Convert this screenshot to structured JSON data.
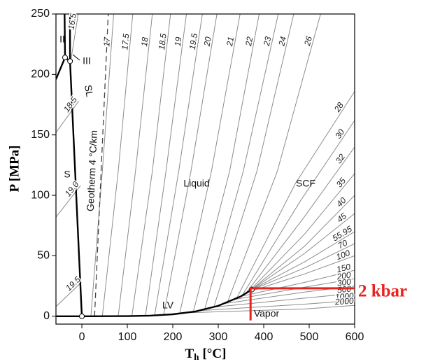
{
  "chart_data": {
    "type": "phase-diagram",
    "xlabel_symbol": "T",
    "xlabel_sub": "h",
    "xlabel_unit": "[°C]",
    "ylabel": "P [MPa]",
    "xlim": [
      -57,
      600
    ],
    "ylim": [
      -6.5,
      250
    ],
    "xticks": [
      0,
      100,
      200,
      300,
      400,
      500,
      600
    ],
    "yticks": [
      0,
      50,
      100,
      150,
      200,
      250
    ],
    "isochore_color": "#8c8c8c",
    "boundary_color": "#000000",
    "boundaries": [
      {
        "x": [
          -57,
          0
        ],
        "values": [
          0,
          0
        ]
      },
      {
        "x": [
          0,
          100,
          150,
          200,
          250,
          300,
          350,
          373.9
        ],
        "values": [
          0,
          0.1,
          0.5,
          1.6,
          4,
          8.6,
          16.5,
          22.1
        ]
      },
      {
        "x": [
          0,
          -26
        ],
        "values": [
          0,
          211
        ]
      },
      {
        "x": [
          -26,
          -37
        ],
        "values": [
          211,
          214
        ]
      },
      {
        "x": [
          -37,
          -57
        ],
        "values": [
          214,
          196
        ]
      },
      {
        "x": [
          -37,
          -38
        ],
        "values": [
          214,
          250
        ]
      },
      {
        "x": [
          -26,
          -26
        ],
        "values": [
          211,
          250
        ]
      }
    ],
    "geotherm": {
      "name": "Geotherm 4 °C/km",
      "x": [
        28,
        58
      ],
      "values": [
        0,
        250
      ],
      "dashed": true
    },
    "points": {
      "x": [
        0,
        -37,
        -26,
        373.9
      ],
      "values": [
        0,
        214,
        211,
        22.1
      ]
    },
    "isochores": [
      {
        "name": "16.5",
        "x": [
          -24,
          -8
        ],
        "values": [
          212,
          250
        ]
      },
      {
        "name": "18.5",
        "x": [
          -57,
          -7
        ],
        "values": [
          152,
          178
        ]
      },
      {
        "name": "19.0",
        "x": [
          -57,
          -3
        ],
        "values": [
          82,
          108
        ]
      },
      {
        "name": "19.5",
        "x": [
          -57,
          -1
        ],
        "values": [
          8,
          28
        ]
      },
      {
        "name": "17",
        "x": [
          20,
          45,
          70
        ],
        "values": [
          0,
          120,
          250
        ]
      },
      {
        "name": "17.5",
        "x": [
          45,
          80,
          112
        ],
        "values": [
          0,
          120,
          250
        ]
      },
      {
        "name": "18",
        "x": [
          80,
          118,
          155
        ],
        "values": [
          0,
          120,
          250
        ]
      },
      {
        "name": "18.5",
        "x": [
          110,
          155,
          195
        ],
        "values": [
          0,
          120,
          250
        ]
      },
      {
        "name": "19",
        "x": [
          140,
          185,
          230
        ],
        "values": [
          0.4,
          120,
          250
        ]
      },
      {
        "name": "19.5",
        "x": [
          160,
          213,
          265
        ],
        "values": [
          0.6,
          120,
          250
        ]
      },
      {
        "name": "20",
        "x": [
          180,
          240,
          297
        ],
        "values": [
          1,
          120,
          250
        ]
      },
      {
        "name": "21",
        "x": [
          215,
          285,
          348
        ],
        "values": [
          2.1,
          120,
          250
        ]
      },
      {
        "name": "22",
        "x": [
          245,
          325,
          390
        ],
        "values": [
          3.6,
          120,
          250
        ]
      },
      {
        "name": "23",
        "x": [
          270,
          355,
          432
        ],
        "values": [
          5.5,
          120,
          250
        ]
      },
      {
        "name": "24",
        "x": [
          290,
          385,
          466
        ],
        "values": [
          7.4,
          120,
          250
        ]
      },
      {
        "name": "26",
        "x": [
          320,
          430,
          525
        ],
        "values": [
          11.3,
          120,
          250
        ]
      },
      {
        "name": "28",
        "x": [
          340,
          470,
          600
        ],
        "values": [
          14.6,
          110,
          186
        ]
      },
      {
        "name": "30",
        "x": [
          352,
          480,
          600
        ],
        "values": [
          16.8,
          95,
          162
        ]
      },
      {
        "name": "32",
        "x": [
          360,
          485,
          600
        ],
        "values": [
          18.6,
          80,
          140
        ]
      },
      {
        "name": "35",
        "x": [
          366,
          490,
          600
        ],
        "values": [
          20,
          68,
          118
        ]
      },
      {
        "name": "40",
        "x": [
          371,
          490,
          600
        ],
        "values": [
          21.5,
          58,
          100
        ]
      },
      {
        "name": "45",
        "x": [
          373,
          490,
          600
        ],
        "values": [
          22,
          52,
          85
        ]
      },
      {
        "name": "55.95",
        "x": [
          374,
          490,
          600
        ],
        "values": [
          22.1,
          45,
          70
        ]
      },
      {
        "name": "70",
        "x": [
          372,
          490,
          600
        ],
        "values": [
          21.5,
          40,
          60
        ]
      },
      {
        "name": "100",
        "x": [
          366,
          490,
          600
        ],
        "values": [
          20,
          35,
          50
        ]
      },
      {
        "name": "150",
        "x": [
          350,
          490,
          600
        ],
        "values": [
          16.5,
          28,
          38
        ]
      },
      {
        "name": "200",
        "x": [
          335,
          490,
          600
        ],
        "values": [
          13.8,
          24,
          31
        ]
      },
      {
        "name": "300",
        "x": [
          315,
          490,
          600
        ],
        "values": [
          10.6,
          20,
          25
        ]
      },
      {
        "name": "500",
        "x": [
          290,
          490,
          600
        ],
        "values": [
          7.5,
          15,
          19
        ]
      },
      {
        "name": "1000",
        "x": [
          260,
          490,
          600
        ],
        "values": [
          4.7,
          10,
          13
        ]
      },
      {
        "name": "2000",
        "x": [
          230,
          490,
          600
        ],
        "values": [
          2.8,
          6,
          9
        ]
      }
    ],
    "labels": [
      "Liquid",
      "SCF",
      "LV",
      "Vapor",
      "S",
      "SL",
      "II",
      "III"
    ],
    "annotation": {
      "text": "2 kbar",
      "color": "#e8231f",
      "x": [
        371,
        371,
        600
      ],
      "values": [
        -3.5,
        23.1,
        23.1
      ]
    }
  }
}
